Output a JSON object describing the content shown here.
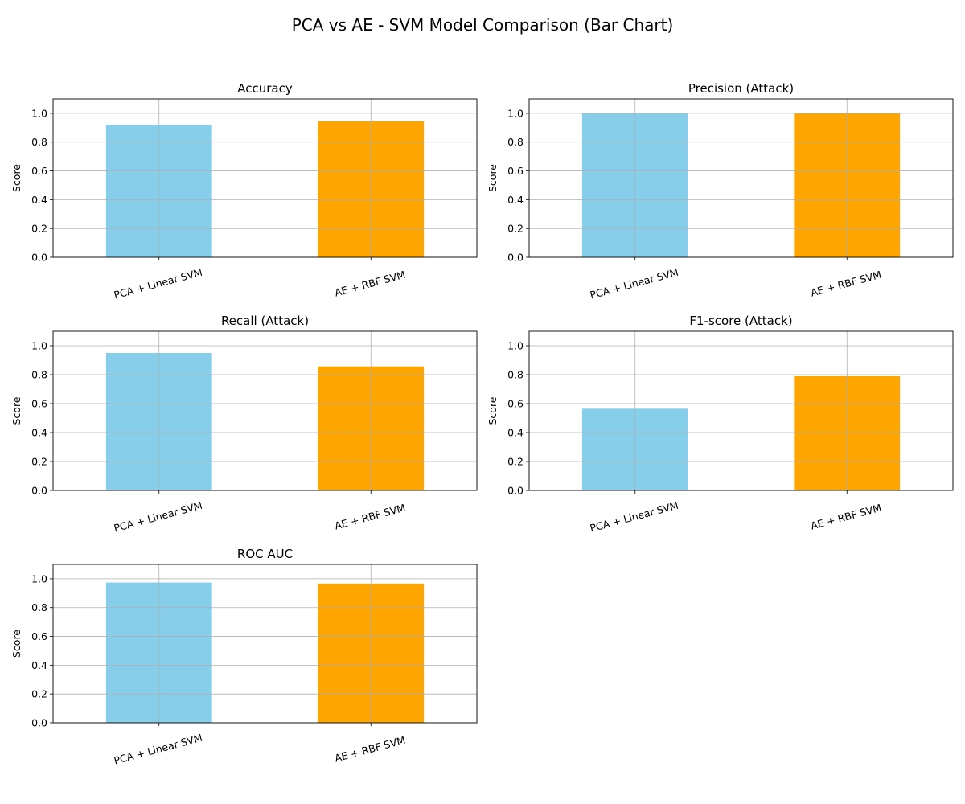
{
  "figure": {
    "title": "PCA vs AE - SVM Model Comparison (Bar Chart)"
  },
  "chart_data": [
    {
      "type": "bar",
      "title": "Accuracy",
      "xlabel": "",
      "ylabel": "Score",
      "categories": [
        "PCA + Linear SVM",
        "AE + RBF SVM"
      ],
      "values": [
        0.92,
        0.945
      ],
      "colors": [
        "#87ceeb",
        "#ffa500"
      ],
      "ylim": [
        0,
        1.1
      ],
      "yticks": [
        "0.0",
        "0.2",
        "0.4",
        "0.6",
        "0.8",
        "1.0"
      ],
      "grid": true
    },
    {
      "type": "bar",
      "title": "Precision (Attack)",
      "xlabel": "",
      "ylabel": "Score",
      "categories": [
        "PCA + Linear SVM",
        "AE + RBF SVM"
      ],
      "values": [
        1.0,
        1.0
      ],
      "colors": [
        "#87ceeb",
        "#ffa500"
      ],
      "ylim": [
        0,
        1.1
      ],
      "yticks": [
        "0.0",
        "0.2",
        "0.4",
        "0.6",
        "0.8",
        "1.0"
      ],
      "grid": true
    },
    {
      "type": "bar",
      "title": "Recall (Attack)",
      "xlabel": "",
      "ylabel": "Score",
      "categories": [
        "PCA + Linear SVM",
        "AE + RBF SVM"
      ],
      "values": [
        0.95,
        0.857
      ],
      "colors": [
        "#87ceeb",
        "#ffa500"
      ],
      "ylim": [
        0,
        1.1
      ],
      "yticks": [
        "0.0",
        "0.2",
        "0.4",
        "0.6",
        "0.8",
        "1.0"
      ],
      "grid": true
    },
    {
      "type": "bar",
      "title": "F1-score (Attack)",
      "xlabel": "",
      "ylabel": "Score",
      "categories": [
        "PCA + Linear SVM",
        "AE + RBF SVM"
      ],
      "values": [
        0.565,
        0.789
      ],
      "colors": [
        "#87ceeb",
        "#ffa500"
      ],
      "ylim": [
        0,
        1.1
      ],
      "yticks": [
        "0.0",
        "0.2",
        "0.4",
        "0.6",
        "0.8",
        "1.0"
      ],
      "grid": true
    },
    {
      "type": "bar",
      "title": "ROC AUC",
      "xlabel": "",
      "ylabel": "Score",
      "categories": [
        "PCA + Linear SVM",
        "AE + RBF SVM"
      ],
      "values": [
        0.974,
        0.967
      ],
      "colors": [
        "#87ceeb",
        "#ffa500"
      ],
      "ylim": [
        0,
        1.1
      ],
      "yticks": [
        "0.0",
        "0.2",
        "0.4",
        "0.6",
        "0.8",
        "1.0"
      ],
      "grid": true
    }
  ]
}
